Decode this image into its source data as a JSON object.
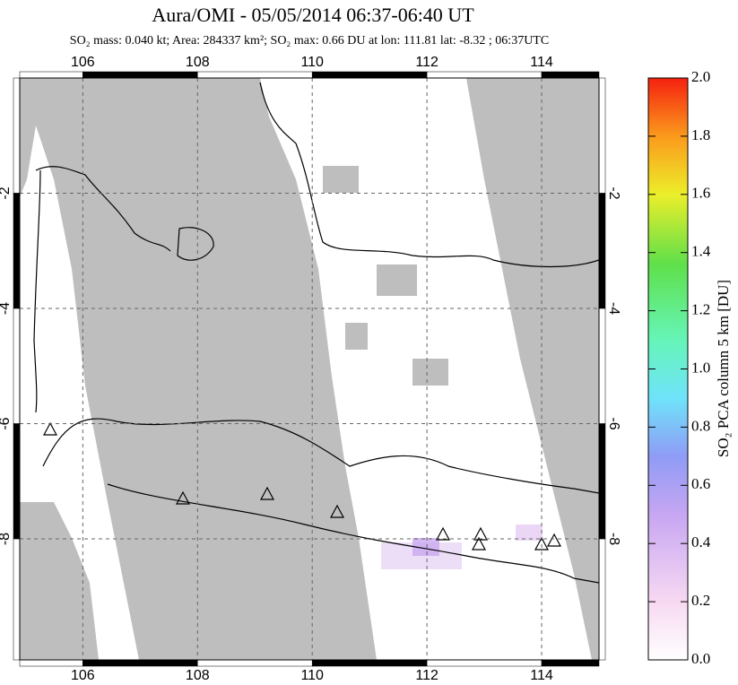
{
  "map": {
    "title": "Aura/OMI - 05/05/2014 06:37-06:40 UT",
    "subtitle": "SO₂ mass: 0.040 kt; Area: 284337 km²; SO₂ max: 0.66 DU at lon: 111.81 lat: -8.32 ; 06:37UTC",
    "xlim": [
      104.9,
      115
    ],
    "ylim": [
      -10.1,
      0
    ],
    "xticks": [
      106,
      108,
      110,
      112,
      114
    ],
    "yticks": [
      -2,
      -4,
      -6,
      -8
    ],
    "grid": true
  },
  "colorbar": {
    "label": "SO₂ PCA column 5 km [DU]",
    "lim": [
      0,
      2
    ],
    "ticks": [
      {
        "value": 0,
        "label": "0.0"
      },
      {
        "value": 0.2,
        "label": "0.2"
      },
      {
        "value": 0.4,
        "label": "0.4"
      },
      {
        "value": 0.6,
        "label": "0.6"
      },
      {
        "value": 0.8,
        "label": "0.8"
      },
      {
        "value": 1,
        "label": "1.0"
      },
      {
        "value": 1.2,
        "label": "1.2"
      },
      {
        "value": 1.4,
        "label": "1.4"
      },
      {
        "value": 1.6,
        "label": "1.6"
      },
      {
        "value": 1.8,
        "label": "1.8"
      },
      {
        "value": 2,
        "label": "2.0"
      }
    ]
  }
}
